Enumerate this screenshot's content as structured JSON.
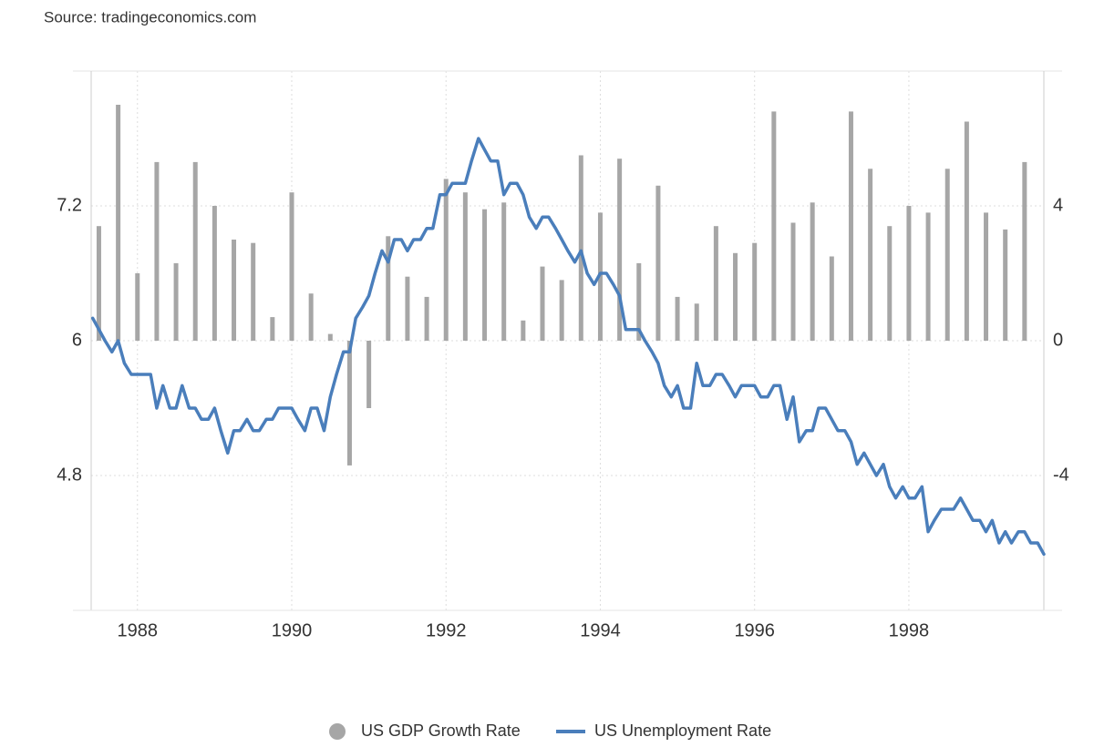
{
  "chart_data": {
    "type": "combo",
    "source": "Source: tradingeconomics.com",
    "xlim": [
      1987.4,
      1999.75
    ],
    "xticks": [
      1988,
      1990,
      1992,
      1994,
      1996,
      1998
    ],
    "ylim": [
      3.6,
      8.4
    ],
    "yticks": [
      4.8,
      6,
      7.2
    ],
    "y2lim": [
      -8,
      8
    ],
    "y2ticks": [
      -4,
      0,
      4
    ],
    "grid": true,
    "legend": "bottom",
    "series": [
      {
        "name": "US GDP Growth Rate",
        "type": "bar",
        "axis": "y2",
        "color": "#a6a6a6",
        "x": [
          1987.5,
          1987.75,
          1988,
          1988.25,
          1988.5,
          1988.75,
          1989,
          1989.25,
          1989.5,
          1989.75,
          1990,
          1990.25,
          1990.5,
          1990.75,
          1991,
          1991.25,
          1991.5,
          1991.75,
          1992,
          1992.25,
          1992.5,
          1992.75,
          1993,
          1993.25,
          1993.5,
          1993.75,
          1994,
          1994.25,
          1994.5,
          1994.75,
          1995,
          1995.25,
          1995.5,
          1995.75,
          1996,
          1996.25,
          1996.5,
          1996.75,
          1997,
          1997.25,
          1997.5,
          1997.75,
          1998,
          1998.25,
          1998.5,
          1998.75,
          1999,
          1999.25,
          1999.5
        ],
        "values": [
          3.4,
          7.0,
          2.0,
          5.3,
          2.3,
          5.3,
          4.0,
          3.0,
          2.9,
          0.7,
          4.4,
          1.4,
          0.2,
          -3.7,
          -2.0,
          3.1,
          1.9,
          1.3,
          4.8,
          4.4,
          3.9,
          4.1,
          0.6,
          2.2,
          1.8,
          5.5,
          3.8,
          5.4,
          2.3,
          4.6,
          1.3,
          1.1,
          3.4,
          2.6,
          2.9,
          6.8,
          3.5,
          4.1,
          2.5,
          6.8,
          5.1,
          3.4,
          4.0,
          3.8,
          5.1,
          6.5,
          3.8,
          3.3,
          5.3
        ]
      },
      {
        "name": "US Unemployment Rate",
        "type": "line",
        "axis": "y",
        "color": "#4a7ebb",
        "x": [
          1987.42,
          1987.5,
          1987.58,
          1987.67,
          1987.75,
          1987.83,
          1987.92,
          1988,
          1988.08,
          1988.17,
          1988.25,
          1988.33,
          1988.42,
          1988.5,
          1988.58,
          1988.67,
          1988.75,
          1988.83,
          1988.92,
          1989,
          1989.08,
          1989.17,
          1989.25,
          1989.33,
          1989.42,
          1989.5,
          1989.58,
          1989.67,
          1989.75,
          1989.83,
          1989.92,
          1990,
          1990.08,
          1990.17,
          1990.25,
          1990.33,
          1990.42,
          1990.5,
          1990.58,
          1990.67,
          1990.75,
          1990.83,
          1990.92,
          1991,
          1991.08,
          1991.17,
          1991.25,
          1991.33,
          1991.42,
          1991.5,
          1991.58,
          1991.67,
          1991.75,
          1991.83,
          1991.92,
          1992,
          1992.08,
          1992.17,
          1992.25,
          1992.33,
          1992.42,
          1992.5,
          1992.58,
          1992.67,
          1992.75,
          1992.83,
          1992.92,
          1993,
          1993.08,
          1993.17,
          1993.25,
          1993.33,
          1993.42,
          1993.5,
          1993.58,
          1993.67,
          1993.75,
          1993.83,
          1993.92,
          1994,
          1994.08,
          1994.17,
          1994.25,
          1994.33,
          1994.42,
          1994.5,
          1994.58,
          1994.67,
          1994.75,
          1994.83,
          1994.92,
          1995,
          1995.08,
          1995.17,
          1995.25,
          1995.33,
          1995.42,
          1995.5,
          1995.58,
          1995.67,
          1995.75,
          1995.83,
          1995.92,
          1996,
          1996.08,
          1996.17,
          1996.25,
          1996.33,
          1996.42,
          1996.5,
          1996.58,
          1996.67,
          1996.75,
          1996.83,
          1996.92,
          1997,
          1997.08,
          1997.17,
          1997.25,
          1997.33,
          1997.42,
          1997.5,
          1997.58,
          1997.67,
          1997.75,
          1997.83,
          1997.92,
          1998,
          1998.08,
          1998.17,
          1998.25,
          1998.33,
          1998.42,
          1998.5,
          1998.58,
          1998.67,
          1998.75,
          1998.83,
          1998.92,
          1999,
          1999.08,
          1999.17,
          1999.25,
          1999.33,
          1999.42,
          1999.5,
          1999.58,
          1999.67,
          1999.75
        ],
        "values": [
          6.2,
          6.1,
          6.0,
          5.9,
          6.0,
          5.8,
          5.7,
          5.7,
          5.7,
          5.7,
          5.4,
          5.6,
          5.4,
          5.4,
          5.6,
          5.4,
          5.4,
          5.3,
          5.3,
          5.4,
          5.2,
          5.0,
          5.2,
          5.2,
          5.3,
          5.2,
          5.2,
          5.3,
          5.3,
          5.4,
          5.4,
          5.4,
          5.3,
          5.2,
          5.4,
          5.4,
          5.2,
          5.5,
          5.7,
          5.9,
          5.9,
          6.2,
          6.3,
          6.4,
          6.6,
          6.8,
          6.7,
          6.9,
          6.9,
          6.8,
          6.9,
          6.9,
          7.0,
          7.0,
          7.3,
          7.3,
          7.4,
          7.4,
          7.4,
          7.6,
          7.8,
          7.7,
          7.6,
          7.6,
          7.3,
          7.4,
          7.4,
          7.3,
          7.1,
          7.0,
          7.1,
          7.1,
          7.0,
          6.9,
          6.8,
          6.7,
          6.8,
          6.6,
          6.5,
          6.6,
          6.6,
          6.5,
          6.4,
          6.1,
          6.1,
          6.1,
          6.0,
          5.9,
          5.8,
          5.6,
          5.5,
          5.6,
          5.4,
          5.4,
          5.8,
          5.6,
          5.6,
          5.7,
          5.7,
          5.6,
          5.5,
          5.6,
          5.6,
          5.6,
          5.5,
          5.5,
          5.6,
          5.6,
          5.3,
          5.5,
          5.1,
          5.2,
          5.2,
          5.4,
          5.4,
          5.3,
          5.2,
          5.2,
          5.1,
          4.9,
          5.0,
          4.9,
          4.8,
          4.9,
          4.7,
          4.6,
          4.7,
          4.6,
          4.6,
          4.7,
          4.3,
          4.4,
          4.5,
          4.5,
          4.5,
          4.6,
          4.5,
          4.4,
          4.4,
          4.3,
          4.4,
          4.2,
          4.3,
          4.2,
          4.3,
          4.3,
          4.2,
          4.2,
          4.1
        ]
      }
    ]
  }
}
